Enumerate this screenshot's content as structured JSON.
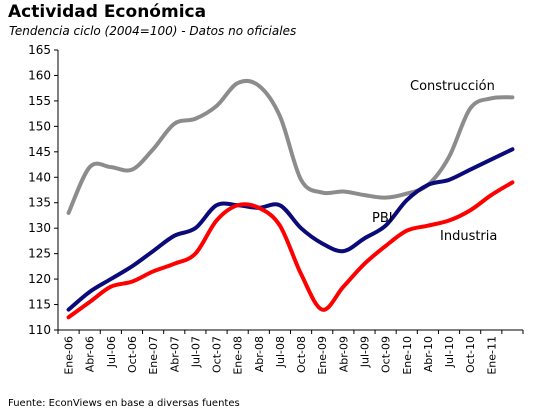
{
  "header": {
    "title": "Actividad Económica",
    "subtitle": "Tendencia ciclo (2004=100)  - Datos no oficiales"
  },
  "footer": {
    "source": "Fuente: EconViews en base a diversas fuentes"
  },
  "chart_data": {
    "type": "line",
    "title": "Actividad Económica",
    "subtitle": "Tendencia ciclo (2004=100)  - Datos no oficiales",
    "xlabel": "",
    "ylabel": "",
    "ylim": [
      110,
      165
    ],
    "yticks": [
      110,
      115,
      120,
      125,
      130,
      135,
      140,
      145,
      150,
      155,
      160,
      165
    ],
    "grid": false,
    "legend": "none (series labelled inline)",
    "x_tick_labels": [
      "Ene-06",
      "Abr-06",
      "Jul-06",
      "Oct-06",
      "Ene-07",
      "Abr-07",
      "Jul-07",
      "Oct-07",
      "Ene-08",
      "Abr-08",
      "Jul-08",
      "Oct-08",
      "Ene-09",
      "Abr-09",
      "Jul-09",
      "Oct-09",
      "Ene-10",
      "Abr-10",
      "Jul-10",
      "Oct-10",
      "Ene-11"
    ],
    "x": [
      "Ene-06",
      "Abr-06",
      "Jul-06",
      "Oct-06",
      "Ene-07",
      "Abr-07",
      "Jul-07",
      "Oct-07",
      "Ene-08",
      "Abr-08",
      "Jul-08",
      "Oct-08",
      "Ene-09",
      "Abr-09",
      "Jul-09",
      "Oct-09",
      "Ene-10",
      "Abr-10",
      "Jul-10",
      "Oct-10",
      "Ene-11",
      "Abr-11"
    ],
    "series": [
      {
        "name": "Construcción",
        "color": "#8c8c8c",
        "values": [
          133.0,
          142.0,
          142.0,
          141.5,
          145.5,
          150.5,
          151.5,
          154.0,
          158.5,
          158.0,
          152.0,
          139.5,
          137.0,
          137.2,
          136.5,
          136.0,
          136.8,
          138.5,
          144.0,
          153.5,
          155.5,
          155.7
        ]
      },
      {
        "name": "PBI",
        "color": "#0a0a7a",
        "values": [
          114.0,
          117.5,
          120.0,
          122.5,
          125.5,
          128.5,
          130.0,
          134.5,
          134.5,
          134.0,
          134.5,
          130.0,
          127.0,
          125.5,
          128.0,
          130.5,
          135.5,
          138.5,
          139.5,
          141.5,
          143.5,
          145.5
        ]
      },
      {
        "name": "Industria",
        "color": "#ff0000",
        "values": [
          112.5,
          115.5,
          118.5,
          119.5,
          121.5,
          123.0,
          125.0,
          131.5,
          134.5,
          134.0,
          130.5,
          121.0,
          114.0,
          118.5,
          123.0,
          126.5,
          129.5,
          130.5,
          131.5,
          133.5,
          136.5,
          139.0
        ]
      }
    ]
  }
}
